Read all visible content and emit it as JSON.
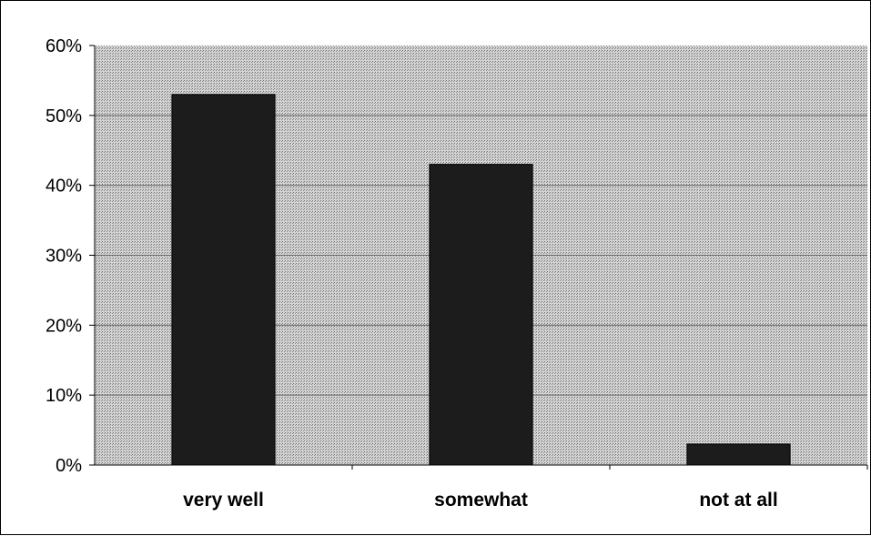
{
  "chart_data": {
    "type": "bar",
    "categories": [
      "very well",
      "somewhat",
      "not at all"
    ],
    "values": [
      53,
      43,
      3
    ],
    "title": "",
    "xlabel": "",
    "ylabel": "",
    "ylim": [
      0,
      60
    ],
    "yticks": [
      "0%",
      "10%",
      "20%",
      "30%",
      "40%",
      "50%",
      "60%"
    ],
    "grid": true,
    "legend": "none",
    "colors": {
      "bar": "#1c1c1c",
      "plot_background": "#b8b8b8",
      "gridline": "#6a6a6a"
    }
  }
}
